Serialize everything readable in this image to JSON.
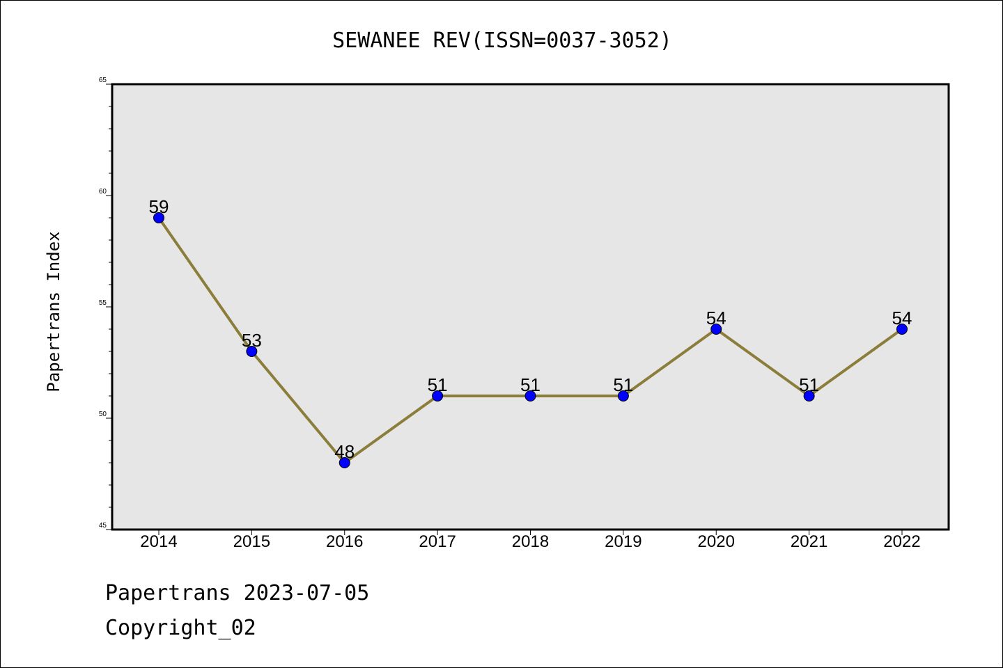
{
  "chart_data": {
    "type": "line",
    "title": "SEWANEE REV(ISSN=0037-3052)",
    "xlabel": "",
    "ylabel": "Papertrans Index",
    "categories": [
      "2014",
      "2015",
      "2016",
      "2017",
      "2018",
      "2019",
      "2020",
      "2021",
      "2022"
    ],
    "series": [
      {
        "values": [
          59,
          53,
          48,
          51,
          51,
          51,
          54,
          51,
          54
        ],
        "line_color": "#8B7D3A",
        "marker_color": "#0000FF",
        "data_labels": [
          "59",
          "53",
          "48",
          "51",
          "51",
          "51",
          "54",
          "51",
          "54"
        ]
      }
    ],
    "ylim": [
      45,
      65
    ],
    "yticks": [
      "45",
      "50",
      "55",
      "60",
      "65"
    ],
    "grid": false,
    "plot_background": "#E6E6E6"
  },
  "footer": {
    "line1": "Papertrans 2023-07-05",
    "line2": "Copyright_02"
  }
}
